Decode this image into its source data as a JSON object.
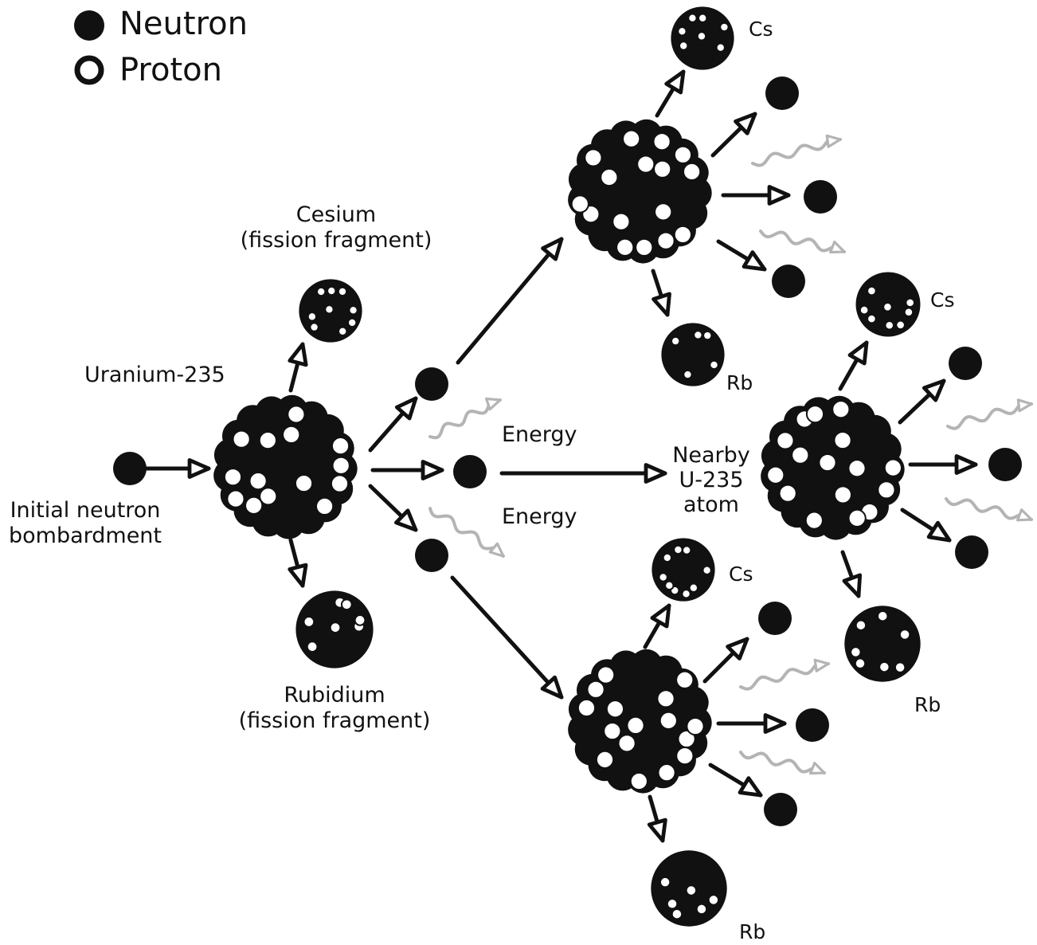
{
  "legend": {
    "neutron_label": "Neutron",
    "proton_label": "Proton"
  },
  "labels": {
    "uranium": "Uranium-235",
    "initial_neutron_line1": "Initial neutron",
    "initial_neutron_line2": "bombardment",
    "cesium_line1": "Cesium",
    "cesium_line2": "(fission fragment)",
    "rubidium_line1": "Rubidium",
    "rubidium_line2": "(fission fragment)",
    "energy_top": "Energy",
    "energy_bottom": "Energy",
    "nearby_line1": "Nearby",
    "nearby_line2": "U-235",
    "nearby_line3": "atom",
    "cs_top": "Cs",
    "rb_top": "Rb",
    "cs_right": "Cs",
    "rb_right": "Rb",
    "cs_bottom": "Cs",
    "rb_bottom": "Rb"
  },
  "colors": {
    "ink": "#111111",
    "paper": "#ffffff",
    "energy_wave": "#b4b4b4"
  }
}
